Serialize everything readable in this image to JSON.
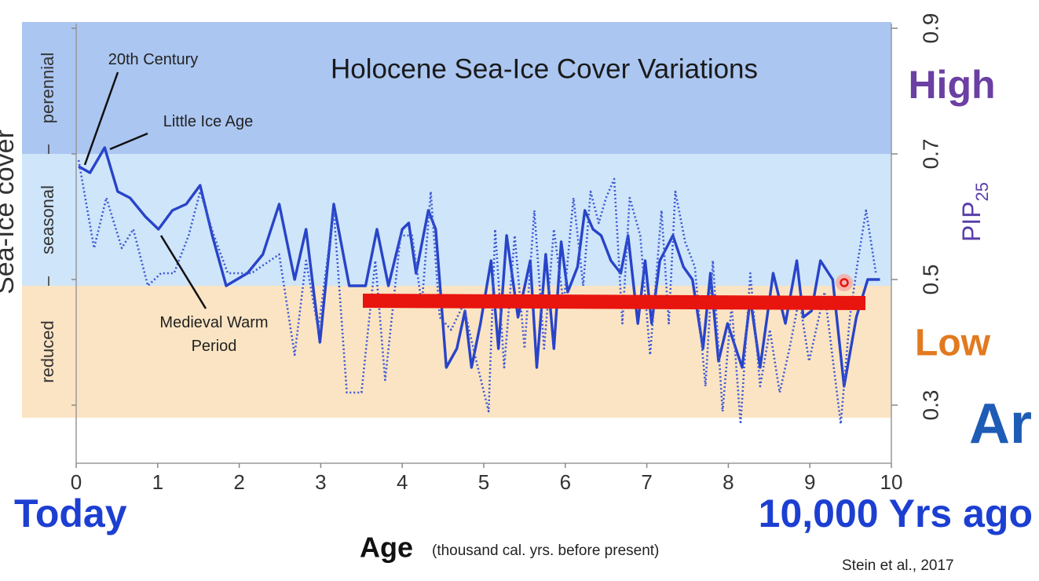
{
  "chart_data": {
    "type": "line",
    "title": "Holocene Sea-Ice Cover Variations",
    "x_label": "Age",
    "x_label_note": "(thousand cal. yrs. before present)",
    "y_label": "Sea-Ice cover",
    "y2_label": "PIP",
    "y2_label_sub": "25",
    "xlim": [
      0,
      10
    ],
    "xticks": [
      0,
      1,
      2,
      3,
      4,
      5,
      6,
      7,
      8,
      9,
      10
    ],
    "ylim": [
      0.21,
      0.91
    ],
    "yticks": [
      0.3,
      0.5,
      0.7,
      0.9
    ],
    "bands": [
      {
        "name": "perennial",
        "from": 0.7,
        "to": 0.91,
        "color": "#abc6f1"
      },
      {
        "name": "seasonal",
        "from": 0.49,
        "to": 0.7,
        "color": "#cfe5f9"
      },
      {
        "name": "reduced",
        "from": 0.28,
        "to": 0.49,
        "color": "#fbe4c3"
      }
    ],
    "series": [
      {
        "style": "solid",
        "color": "#2844c8",
        "x": [
          0.03,
          0.17,
          0.35,
          0.51,
          0.66,
          0.85,
          1.01,
          1.18,
          1.35,
          1.52,
          1.67,
          1.84,
          2.1,
          2.29,
          2.49,
          2.68,
          2.82,
          2.99,
          3.16,
          3.35,
          3.55,
          3.69,
          3.83,
          4.0,
          4.08,
          4.17,
          4.32,
          4.41,
          4.54,
          4.67,
          4.77,
          4.85,
          4.96,
          5.09,
          5.18,
          5.28,
          5.42,
          5.57,
          5.65,
          5.76,
          5.86,
          5.95,
          6.03,
          6.15,
          6.24,
          6.34,
          6.44,
          6.56,
          6.68,
          6.77,
          6.89,
          6.98,
          7.06,
          7.16,
          7.32,
          7.45,
          7.56,
          7.69,
          7.78,
          7.88,
          7.99,
          8.17,
          8.27,
          8.39,
          8.55,
          8.7,
          8.84,
          8.92,
          9.02,
          9.13,
          9.28,
          9.42,
          9.57,
          9.71,
          9.86
        ],
        "values": [
          0.68,
          0.67,
          0.71,
          0.64,
          0.63,
          0.6,
          0.58,
          0.61,
          0.62,
          0.65,
          0.57,
          0.49,
          0.51,
          0.54,
          0.62,
          0.5,
          0.58,
          0.4,
          0.62,
          0.49,
          0.49,
          0.58,
          0.49,
          0.58,
          0.59,
          0.51,
          0.61,
          0.58,
          0.36,
          0.39,
          0.45,
          0.36,
          0.43,
          0.53,
          0.39,
          0.57,
          0.44,
          0.53,
          0.36,
          0.54,
          0.39,
          0.56,
          0.48,
          0.52,
          0.61,
          0.58,
          0.57,
          0.53,
          0.51,
          0.57,
          0.43,
          0.53,
          0.43,
          0.53,
          0.57,
          0.52,
          0.5,
          0.39,
          0.51,
          0.37,
          0.43,
          0.36,
          0.47,
          0.36,
          0.51,
          0.43,
          0.53,
          0.44,
          0.45,
          0.53,
          0.5,
          0.33,
          0.44,
          0.5,
          0.5
        ]
      },
      {
        "style": "dotted",
        "color": "#3a58d6",
        "x": [
          0.03,
          0.22,
          0.37,
          0.56,
          0.7,
          0.88,
          1.04,
          1.2,
          1.38,
          1.52,
          1.69,
          1.86,
          2.15,
          2.49,
          2.68,
          2.82,
          2.97,
          3.16,
          3.32,
          3.5,
          3.67,
          3.79,
          3.98,
          4.12,
          4.24,
          4.35,
          4.46,
          4.6,
          4.75,
          4.89,
          5.06,
          5.14,
          5.25,
          5.38,
          5.5,
          5.62,
          5.74,
          5.86,
          5.98,
          6.1,
          6.22,
          6.31,
          6.41,
          6.5,
          6.6,
          6.7,
          6.79,
          6.92,
          7.04,
          7.18,
          7.27,
          7.35,
          7.47,
          7.59,
          7.72,
          7.81,
          7.93,
          8.04,
          8.15,
          8.27,
          8.39,
          8.51,
          8.63,
          8.75,
          8.87,
          8.99,
          9.18,
          9.38,
          9.49,
          9.59,
          9.69,
          9.81
        ],
        "values": [
          0.69,
          0.55,
          0.63,
          0.55,
          0.58,
          0.49,
          0.51,
          0.51,
          0.57,
          0.64,
          0.57,
          0.51,
          0.51,
          0.54,
          0.38,
          0.53,
          0.42,
          0.61,
          0.32,
          0.32,
          0.53,
          0.34,
          0.57,
          0.57,
          0.46,
          0.64,
          0.44,
          0.42,
          0.46,
          0.38,
          0.29,
          0.58,
          0.36,
          0.57,
          0.39,
          0.61,
          0.39,
          0.58,
          0.46,
          0.63,
          0.49,
          0.64,
          0.59,
          0.63,
          0.66,
          0.43,
          0.63,
          0.57,
          0.38,
          0.61,
          0.43,
          0.64,
          0.56,
          0.52,
          0.33,
          0.53,
          0.29,
          0.46,
          0.27,
          0.51,
          0.33,
          0.42,
          0.32,
          0.39,
          0.47,
          0.37,
          0.48,
          0.27,
          0.44,
          0.53,
          0.61,
          0.51
        ]
      }
    ],
    "annotations": [
      "20th Century",
      "Little Ice Age",
      "Medieval Warm Period"
    ],
    "high_label": "High",
    "low_label": "Low",
    "cut_label": "Ar",
    "start_label": "Today",
    "end_label": "10,000 Yrs ago",
    "source": "Stein et al., 2017"
  }
}
